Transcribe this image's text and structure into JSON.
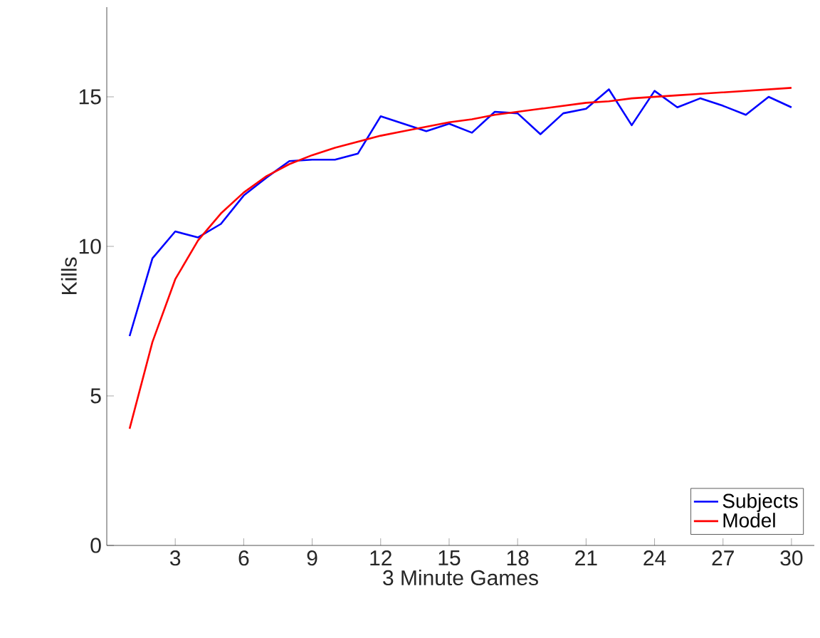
{
  "chart_data": {
    "type": "line",
    "xlabel": "3 Minute Games",
    "ylabel": "Kills",
    "x": [
      1,
      2,
      3,
      4,
      5,
      6,
      7,
      8,
      9,
      10,
      11,
      12,
      13,
      14,
      15,
      16,
      17,
      18,
      19,
      20,
      21,
      22,
      23,
      24,
      25,
      26,
      27,
      28,
      29,
      30
    ],
    "series": [
      {
        "name": "Subjects",
        "color": "#0000ff",
        "values": [
          7.0,
          9.6,
          10.5,
          10.3,
          10.75,
          11.7,
          12.3,
          12.85,
          12.9,
          12.9,
          13.1,
          14.35,
          14.1,
          13.85,
          14.1,
          13.8,
          14.5,
          14.45,
          13.75,
          14.45,
          14.6,
          15.25,
          14.05,
          15.2,
          14.65,
          14.95,
          14.7,
          14.4,
          15.0,
          14.65
        ]
      },
      {
        "name": "Model",
        "color": "#ff0000",
        "values": [
          3.9,
          6.8,
          8.9,
          10.2,
          11.1,
          11.8,
          12.35,
          12.75,
          13.05,
          13.3,
          13.5,
          13.7,
          13.85,
          14.0,
          14.15,
          14.25,
          14.4,
          14.5,
          14.6,
          14.7,
          14.8,
          14.85,
          14.95,
          15.0,
          15.05,
          15.1,
          15.15,
          15.2,
          15.25,
          15.3
        ]
      }
    ],
    "xlim": [
      0,
      31
    ],
    "ylim": [
      0,
      18
    ],
    "xticks": [
      3,
      6,
      9,
      12,
      15,
      18,
      21,
      24,
      27,
      30
    ],
    "yticks": [
      0,
      5,
      10,
      15
    ],
    "legend": "bottom right",
    "grid": false
  }
}
